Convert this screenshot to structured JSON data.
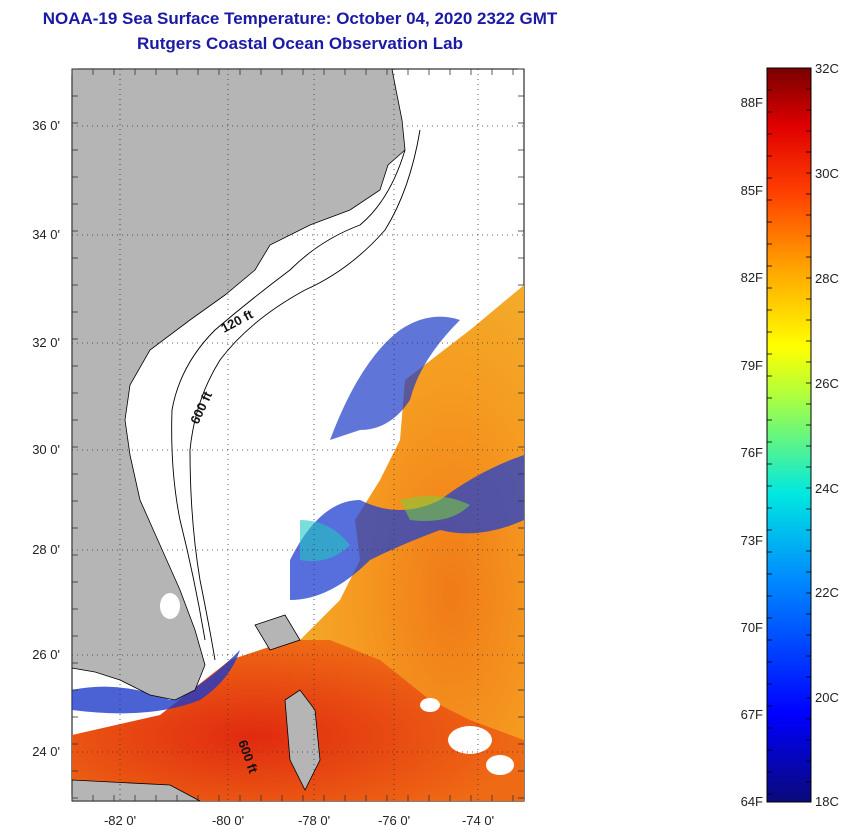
{
  "header": {
    "title": "NOAA-19 Sea Surface Temperature:  October 04, 2020 2322 GMT",
    "subtitle": "Rutgers Coastal Ocean Observation Lab"
  },
  "map": {
    "lon_labels": [
      "-82 0'",
      "-80 0'",
      "-78 0'",
      "-76 0'",
      "-74 0'"
    ],
    "lat_labels": [
      "36 0'",
      "34 0'",
      "32 0'",
      "30 0'",
      "28 0'",
      "26 0'",
      "24 0'"
    ],
    "depth_labels": [
      "120 ft",
      "600 ft",
      "600 ft"
    ],
    "colors": {
      "land": "#b5b5b5",
      "cloud": "#ffffff",
      "warm": "#f08a1a",
      "hot": "#e8420f",
      "cool": "#1e3fd0"
    }
  },
  "colorbar": {
    "celsius_labels": [
      "32C",
      "30C",
      "28C",
      "26C",
      "24C",
      "22C",
      "20C",
      "18C"
    ],
    "fahrenheit_labels": [
      "88F",
      "85F",
      "82F",
      "79F",
      "76F",
      "73F",
      "70F",
      "67F",
      "64F"
    ]
  }
}
